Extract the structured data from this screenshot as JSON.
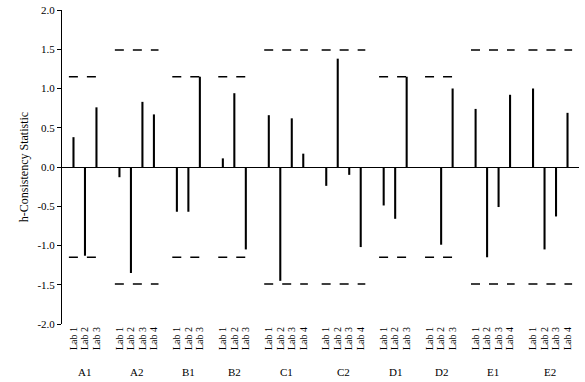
{
  "chart_data": {
    "type": "bar",
    "y_label": "h-Consistency Statistic",
    "color": "#000000",
    "line_style": "dash",
    "grid": false,
    "ylim": [
      -2,
      2
    ],
    "yticks": [
      {
        "value": -2,
        "label": "-2.0"
      },
      {
        "value": -1.5,
        "label": "-1.5"
      },
      {
        "value": -1,
        "label": "-1.0"
      },
      {
        "value": -0.5,
        "label": "-0.5"
      },
      {
        "value": 0,
        "label": "0.0"
      },
      {
        "value": 0.5,
        "label": "0.5"
      },
      {
        "value": 1,
        "label": "1.0"
      },
      {
        "value": 1.5,
        "label": "1.5"
      },
      {
        "value": 2,
        "label": "2.0"
      }
    ],
    "groups": [
      {
        "name": "A1",
        "categories": [
          "Lab 1",
          "Lab 2",
          "Lab 3"
        ],
        "values": [
          0.38,
          -1.13,
          0.76
        ],
        "critical_values": [
          -1.15,
          1.15
        ]
      },
      {
        "name": "A2",
        "categories": [
          "Lab 1",
          "Lab 2",
          "Lab 3",
          "Lab 4"
        ],
        "values": [
          -0.13,
          -1.35,
          0.83,
          0.67
        ],
        "critical_values": [
          -1.49,
          1.49
        ]
      },
      {
        "name": "B1",
        "categories": [
          "Lab 1",
          "Lab 2",
          "Lab 3"
        ],
        "values": [
          -0.57,
          -0.57,
          1.15
        ],
        "critical_values": [
          -1.15,
          1.15
        ]
      },
      {
        "name": "B2",
        "categories": [
          "Lab 1",
          "Lab 2",
          "Lab 3"
        ],
        "values": [
          0.11,
          0.94,
          -1.05
        ],
        "critical_values": [
          -1.15,
          1.15
        ]
      },
      {
        "name": "C1",
        "categories": [
          "Lab 1",
          "Lab 2",
          "Lab 3",
          "Lab 4"
        ],
        "values": [
          0.66,
          -1.45,
          0.62,
          0.17
        ],
        "critical_values": [
          -1.49,
          1.49
        ]
      },
      {
        "name": "C2",
        "categories": [
          "Lab 1",
          "Lab 2",
          "Lab 3",
          "Lab 4"
        ],
        "values": [
          -0.24,
          1.38,
          -0.1,
          -1.02
        ],
        "critical_values": [
          -1.49,
          1.49
        ]
      },
      {
        "name": "D1",
        "categories": [
          "Lab 1",
          "Lab 2",
          "Lab 3"
        ],
        "values": [
          -0.49,
          -0.66,
          1.15
        ],
        "critical_values": [
          -1.15,
          1.15
        ]
      },
      {
        "name": "D2",
        "categories": [
          "Lab 1",
          "Lab 2",
          "Lab 3"
        ],
        "values": [
          -0.01,
          -0.99,
          1.0
        ],
        "critical_values": [
          -1.15,
          1.15
        ]
      },
      {
        "name": "E1",
        "categories": [
          "Lab 1",
          "Lab 2",
          "Lab 3",
          "Lab 4"
        ],
        "values": [
          0.74,
          -1.15,
          -0.51,
          0.92
        ],
        "critical_values": [
          -1.49,
          1.49
        ]
      },
      {
        "name": "E2",
        "categories": [
          "Lab 1",
          "Lab 2",
          "Lab 3",
          "Lab 4"
        ],
        "values": [
          1.0,
          -1.05,
          -0.63,
          0.69
        ],
        "critical_values": [
          -1.49,
          1.49
        ]
      }
    ]
  }
}
